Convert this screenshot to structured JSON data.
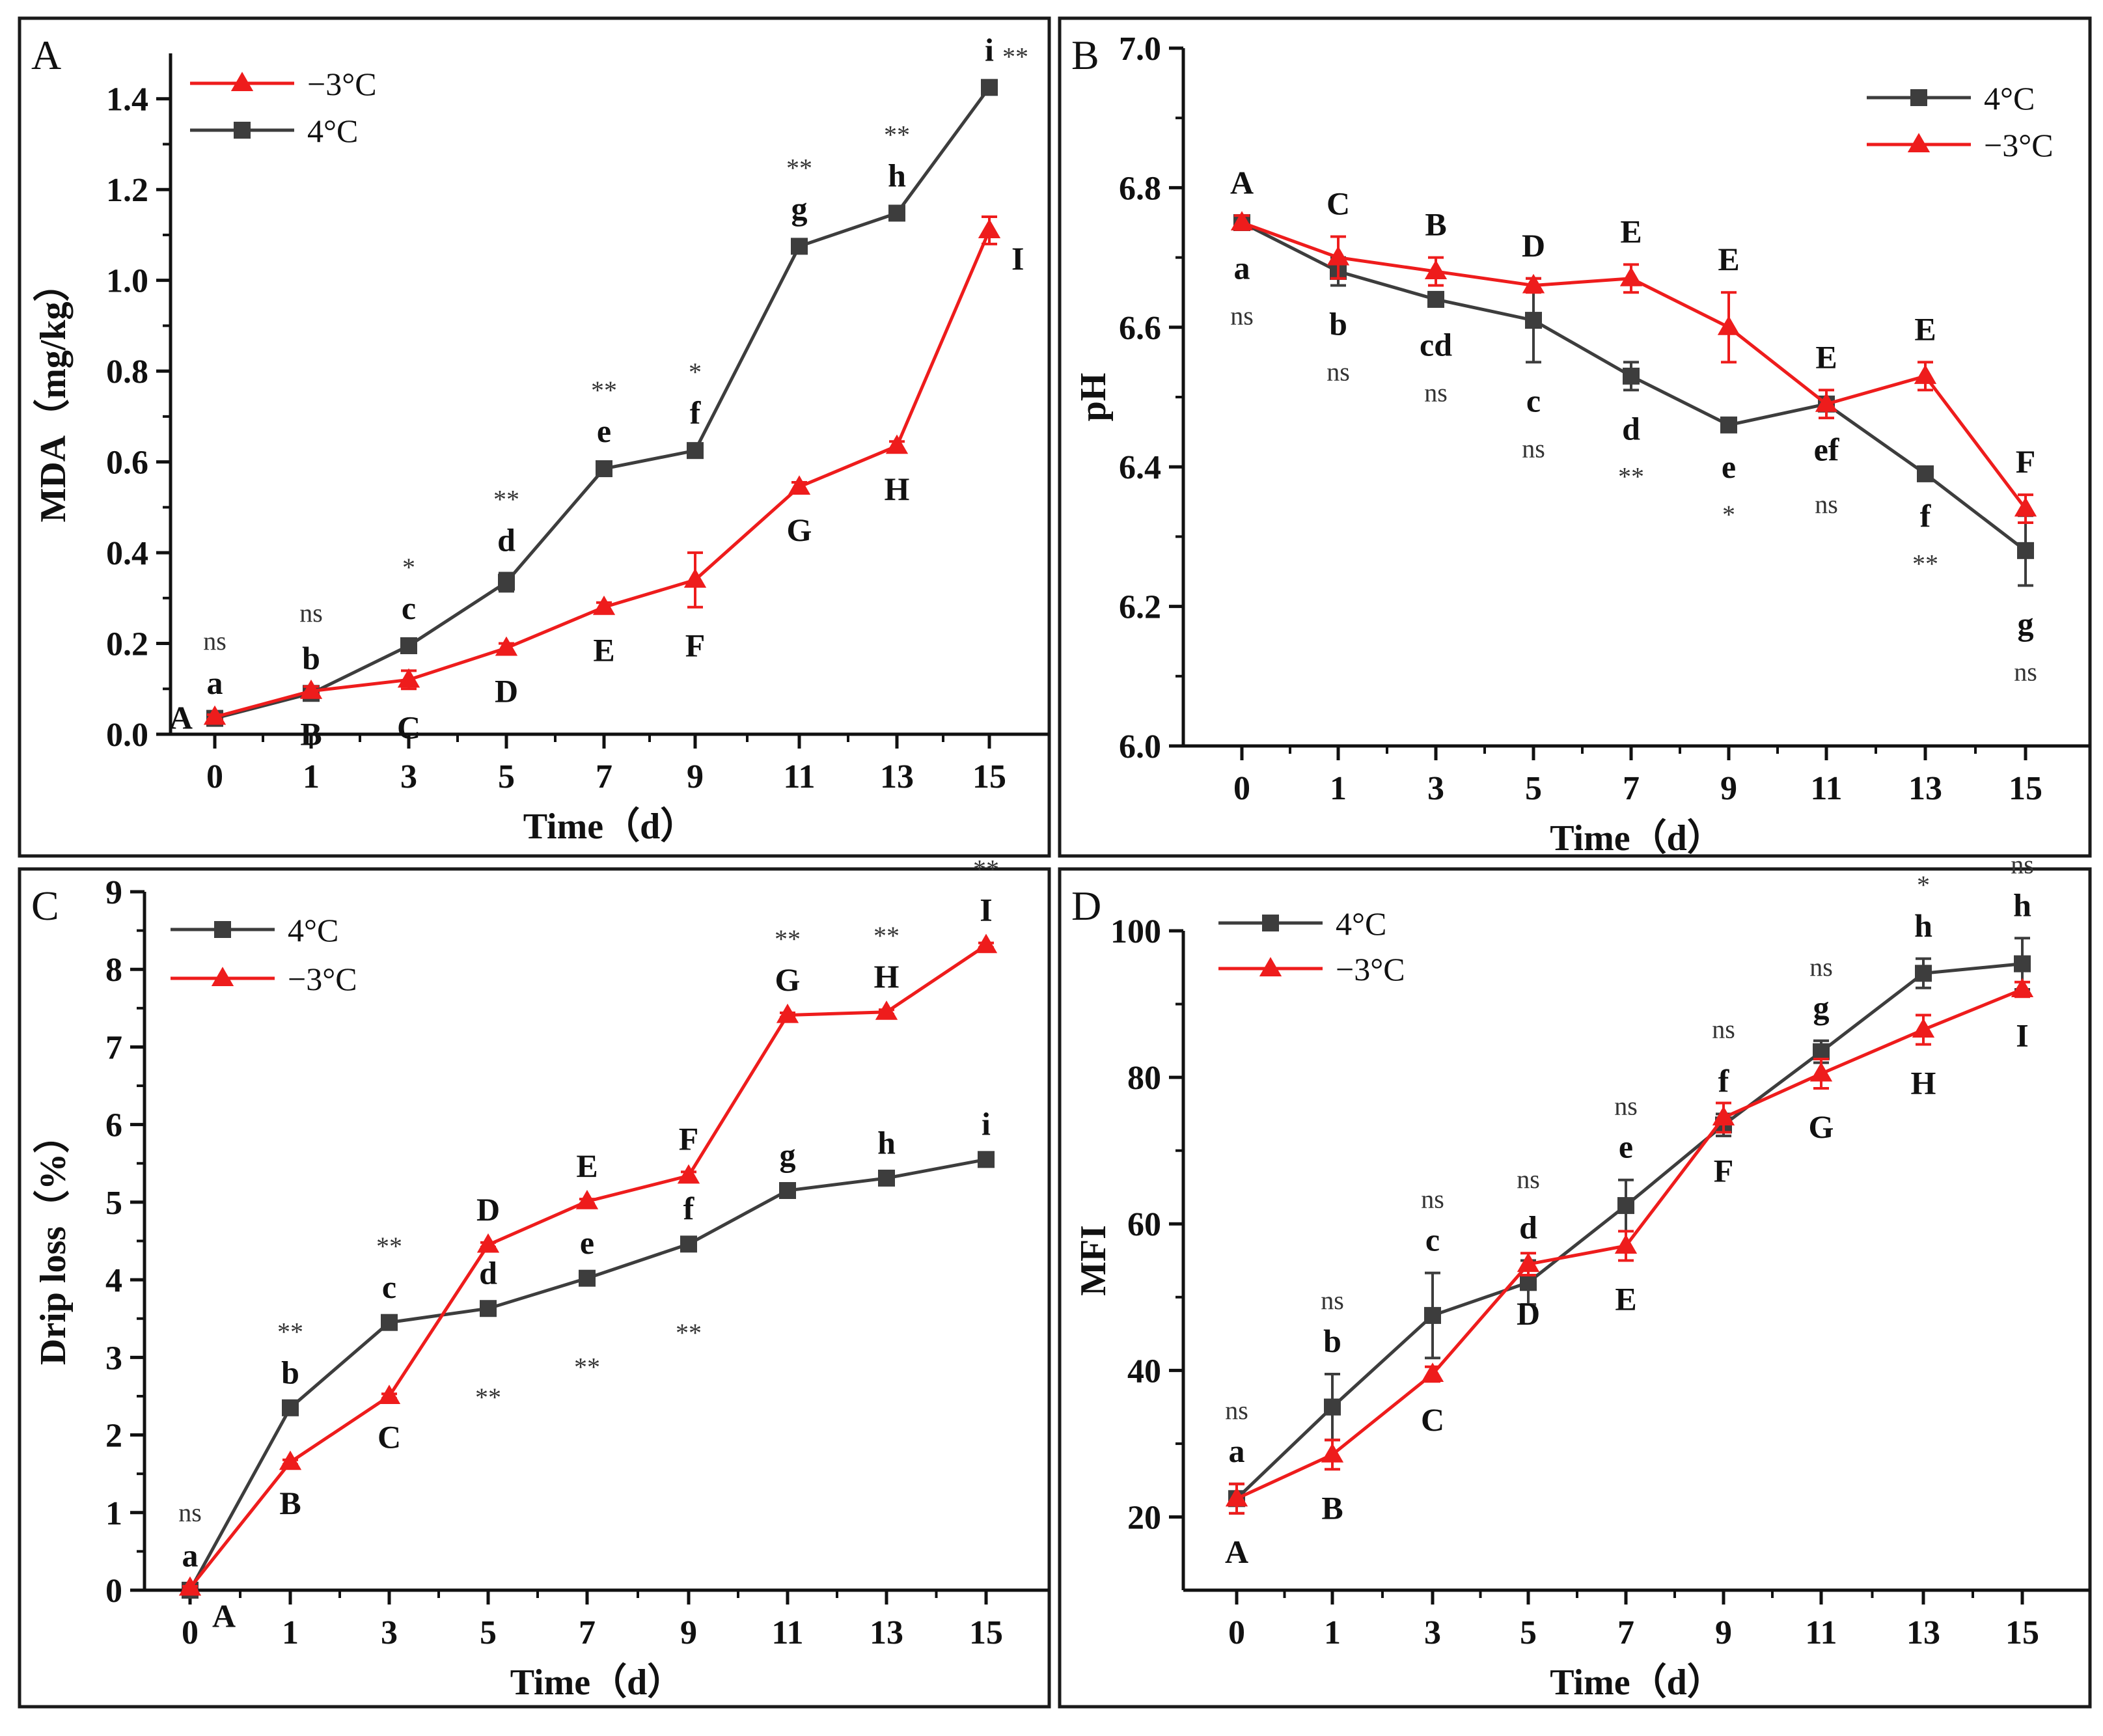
{
  "chart_data": [
    {
      "panel_letter": "A",
      "type": "line",
      "x": [
        0,
        1,
        3,
        5,
        7,
        9,
        11,
        13,
        15
      ],
      "xlabel": "Time（d）",
      "ylabel": "MDA（mg/kg）",
      "ylim": [
        0,
        1.5
      ],
      "yticks": [
        0.0,
        0.2,
        0.4,
        0.6,
        0.8,
        1.0,
        1.2,
        1.4
      ],
      "ytick_labels": [
        "0.0",
        "0.2",
        "0.4",
        "0.6",
        "0.8",
        "1.0",
        "1.2",
        "1.4"
      ],
      "xtick_labels": [
        "0",
        "1",
        "3",
        "5",
        "7",
        "9",
        "11",
        "13",
        "15"
      ],
      "legend_position": "top-left",
      "legend": [
        {
          "name": "−3°C",
          "color": "#ee1c1c",
          "marker": "triangle"
        },
        {
          "name": "4°C",
          "color": "#3d3d3d",
          "marker": "square"
        }
      ],
      "series": [
        {
          "name": "4°C",
          "color": "#3d3d3d",
          "marker": "square",
          "values": [
            0.035,
            0.09,
            0.195,
            0.335,
            0.585,
            0.625,
            1.075,
            1.148,
            1.425
          ],
          "errors": [
            0.005,
            0.005,
            0.01,
            0.02,
            0.01,
            0.01,
            0.01,
            0.01,
            0.01
          ],
          "letters": [
            "a",
            "b",
            "c",
            "d",
            "e",
            "f",
            "g",
            "h",
            "i"
          ],
          "letter_pos": [
            "above",
            "above",
            "above",
            "above",
            "above",
            "above",
            "above",
            "above",
            "above"
          ]
        },
        {
          "name": "−3°C",
          "color": "#ee1c1c",
          "marker": "triangle",
          "values": [
            0.038,
            0.095,
            0.12,
            0.19,
            0.28,
            0.34,
            0.545,
            0.635,
            1.11
          ],
          "errors": [
            0.005,
            0.01,
            0.02,
            0.01,
            0.01,
            0.06,
            0.01,
            0.01,
            0.03
          ],
          "letters": [
            "A",
            "B",
            "C",
            "D",
            "E",
            "F",
            "G",
            "H",
            "I"
          ],
          "letter_pos": [
            "left",
            "below",
            "below",
            "below",
            "below",
            "below",
            "below",
            "below",
            "right"
          ]
        }
      ],
      "significance": [
        "ns",
        "ns",
        "*",
        "**",
        "**",
        "*",
        "**",
        "**",
        "**"
      ],
      "sig_pos": [
        "above",
        "above",
        "above",
        "above",
        "above",
        "above",
        "above",
        "above",
        "right"
      ]
    },
    {
      "panel_letter": "B",
      "type": "line",
      "x": [
        0,
        1,
        3,
        5,
        7,
        9,
        11,
        13,
        15
      ],
      "xlabel": "Time（d）",
      "ylabel": "pH",
      "ylim": [
        6.0,
        7.0
      ],
      "yticks": [
        6.0,
        6.2,
        6.4,
        6.6,
        6.8,
        7.0
      ],
      "ytick_labels": [
        "6.0",
        "6.2",
        "6.4",
        "6.6",
        "6.8",
        "7.0"
      ],
      "xtick_labels": [
        "0",
        "1",
        "3",
        "5",
        "7",
        "9",
        "11",
        "13",
        "15"
      ],
      "legend_position": "top-right",
      "legend": [
        {
          "name": "4°C",
          "color": "#3d3d3d",
          "marker": "square"
        },
        {
          "name": "−3°C",
          "color": "#ee1c1c",
          "marker": "triangle"
        }
      ],
      "series": [
        {
          "name": "4°C",
          "color": "#3d3d3d",
          "marker": "square",
          "values": [
            6.75,
            6.68,
            6.64,
            6.61,
            6.53,
            6.46,
            6.49,
            6.39,
            6.28
          ],
          "errors": [
            0.01,
            0.02,
            0.01,
            0.06,
            0.02,
            0.005,
            0.01,
            0.005,
            0.05
          ],
          "letters": [
            "a",
            "b",
            "cd",
            "c",
            "d",
            "e",
            "ef",
            "f",
            "g"
          ],
          "letter_pos": [
            "below",
            "below",
            "below",
            "below",
            "below",
            "below",
            "below",
            "below",
            "below"
          ]
        },
        {
          "name": "−3°C",
          "color": "#ee1c1c",
          "marker": "triangle",
          "values": [
            6.75,
            6.7,
            6.68,
            6.66,
            6.67,
            6.6,
            6.49,
            6.53,
            6.34
          ],
          "errors": [
            0.01,
            0.03,
            0.02,
            0.01,
            0.02,
            0.05,
            0.02,
            0.02,
            0.02
          ],
          "letters": [
            "A",
            "C",
            "B",
            "D",
            "E",
            "E",
            "E",
            "E",
            "F"
          ],
          "letter_pos": [
            "above",
            "above",
            "above",
            "above",
            "above",
            "above",
            "above",
            "above",
            "above"
          ]
        }
      ],
      "significance": [
        "ns",
        "ns",
        "ns",
        "ns",
        "**",
        "*",
        "ns",
        "**",
        "ns"
      ],
      "sig_pos": [
        "below",
        "below",
        "below",
        "below",
        "below",
        "below",
        "below",
        "below",
        "below"
      ]
    },
    {
      "panel_letter": "C",
      "type": "line",
      "x": [
        0,
        1,
        3,
        5,
        7,
        9,
        11,
        13,
        15
      ],
      "xlabel": "Time（d）",
      "ylabel": "Drip loss（%）",
      "ylim": [
        0,
        9
      ],
      "yticks": [
        0,
        1,
        2,
        3,
        4,
        5,
        6,
        7,
        8,
        9
      ],
      "ytick_labels": [
        "0",
        "1",
        "2",
        "3",
        "4",
        "5",
        "6",
        "7",
        "8",
        "9"
      ],
      "xtick_labels": [
        "0",
        "1",
        "3",
        "5",
        "7",
        "9",
        "11",
        "13",
        "15"
      ],
      "legend_position": "top-left",
      "legend": [
        {
          "name": "4°C",
          "color": "#3d3d3d",
          "marker": "square"
        },
        {
          "name": "−3°C",
          "color": "#ee1c1c",
          "marker": "triangle"
        }
      ],
      "series": [
        {
          "name": "4°C",
          "color": "#3d3d3d",
          "marker": "square",
          "values": [
            0.0,
            2.35,
            3.45,
            3.63,
            4.02,
            4.46,
            5.15,
            5.31,
            5.55
          ],
          "errors": [
            0.02,
            0.03,
            0.03,
            0.03,
            0.03,
            0.03,
            0.03,
            0.03,
            0.03
          ],
          "letters": [
            "a",
            "b",
            "c",
            "d",
            "e",
            "f",
            "g",
            "h",
            "i"
          ],
          "letter_pos": [
            "above",
            "above",
            "above",
            "above",
            "above",
            "above",
            "above",
            "above",
            "above"
          ]
        },
        {
          "name": "−3°C",
          "color": "#ee1c1c",
          "marker": "triangle",
          "values": [
            0.03,
            1.65,
            2.5,
            4.45,
            5.01,
            5.34,
            7.41,
            7.45,
            8.31
          ],
          "errors": [
            0.02,
            0.03,
            0.03,
            0.03,
            0.03,
            0.05,
            0.03,
            0.03,
            0.03
          ],
          "letters": [
            "A",
            "B",
            "C",
            "D",
            "E",
            "F",
            "G",
            "H",
            "I"
          ],
          "letter_pos": [
            "right",
            "below",
            "below",
            "above",
            "above",
            "above",
            "above",
            "above",
            "above"
          ]
        }
      ],
      "significance": [
        "ns",
        "**",
        "**",
        "**",
        "**",
        "**",
        "**",
        "**",
        "**"
      ],
      "sig_pos": [
        "above",
        "above",
        "above",
        "below",
        "below",
        "below",
        "above",
        "above",
        "above"
      ]
    },
    {
      "panel_letter": "D",
      "type": "line",
      "x": [
        0,
        1,
        3,
        5,
        7,
        9,
        11,
        13,
        15
      ],
      "xlabel": "Time（d）",
      "ylabel": "MFI",
      "ylim": [
        10,
        100
      ],
      "yticks": [
        20,
        40,
        60,
        80,
        100
      ],
      "ytick_labels": [
        "20",
        "40",
        "60",
        "80",
        "100"
      ],
      "xtick_labels": [
        "0",
        "1",
        "3",
        "5",
        "7",
        "9",
        "11",
        "13",
        "15"
      ],
      "legend_position": "top-left",
      "legend": [
        {
          "name": "4°C",
          "color": "#3d3d3d",
          "marker": "square"
        },
        {
          "name": "−3°C",
          "color": "#ee1c1c",
          "marker": "triangle"
        }
      ],
      "series": [
        {
          "name": "4°C",
          "color": "#3d3d3d",
          "marker": "square",
          "values": [
            22.5,
            35.0,
            47.5,
            52.0,
            62.5,
            73.5,
            83.5,
            94.2,
            95.5
          ],
          "errors": [
            2.0,
            4.5,
            5.8,
            3.0,
            3.5,
            1.5,
            1.5,
            2.0,
            3.5
          ],
          "letters": [
            "a",
            "b",
            "c",
            "d",
            "e",
            "f",
            "g",
            "h",
            "h"
          ],
          "letter_pos": [
            "above",
            "above",
            "above",
            "above",
            "above",
            "above",
            "above",
            "above",
            "above"
          ]
        },
        {
          "name": "−3°C",
          "color": "#ee1c1c",
          "marker": "triangle",
          "values": [
            22.5,
            28.5,
            39.5,
            54.5,
            57.0,
            74.5,
            80.5,
            86.5,
            92.0
          ],
          "errors": [
            2.0,
            2.0,
            1.0,
            1.5,
            2.0,
            2.0,
            2.0,
            2.0,
            1.0
          ],
          "letters": [
            "A",
            "B",
            "C",
            "D",
            "E",
            "F",
            "G",
            "H",
            "I"
          ],
          "letter_pos": [
            "below",
            "below",
            "below",
            "below",
            "below",
            "below",
            "below",
            "below",
            "below"
          ]
        }
      ],
      "significance": [
        "ns",
        "ns",
        "ns",
        "ns",
        "ns",
        "ns",
        "ns",
        "*",
        "ns"
      ],
      "sig_pos": [
        "above",
        "above",
        "above",
        "above",
        "above",
        "above",
        "above",
        "above",
        "above"
      ]
    }
  ]
}
